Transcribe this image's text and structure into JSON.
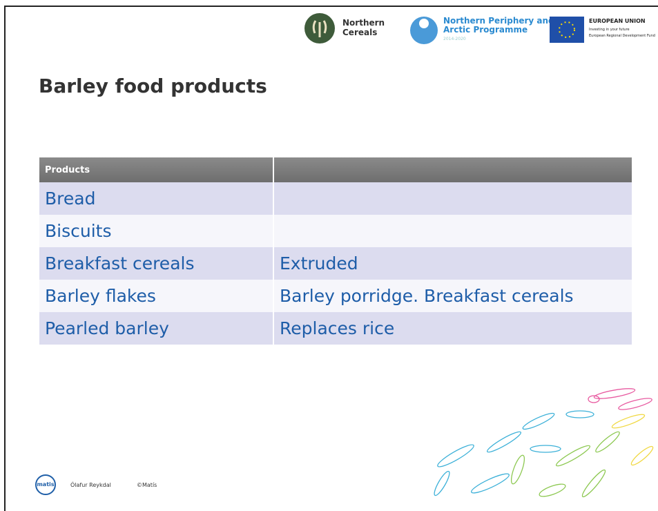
{
  "header": {
    "logos": {
      "northern_cereals": [
        "Northern",
        "Cereals"
      ],
      "npa": {
        "name": [
          "Northern Periphery and",
          "Arctic Programme"
        ],
        "years": "2014-2020"
      },
      "eu": {
        "name": "EUROPEAN UNION",
        "lines": [
          "Investing in your future",
          "European Regional Development Fund"
        ]
      }
    }
  },
  "title": "Barley food products",
  "table": {
    "header": [
      "Products"
    ],
    "rows": [
      [
        "Bread"
      ],
      [
        "Biscuits"
      ],
      [
        "Breakfast cereals",
        "Extruded"
      ],
      [
        "Barley flakes",
        "Barley porridge. Breakfast cereals"
      ],
      [
        "Pearled barley",
        "Replaces rice"
      ]
    ]
  },
  "footer": {
    "logo": "matis",
    "author": "Ólafur Reykdal",
    "copyright": "©Matís"
  }
}
